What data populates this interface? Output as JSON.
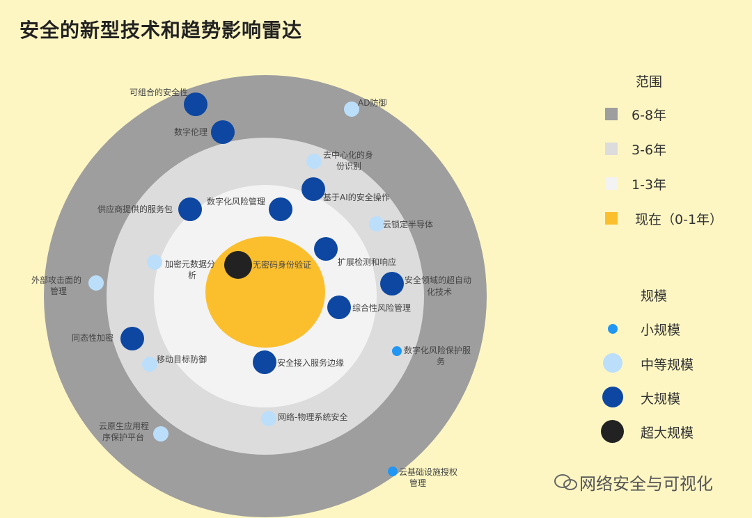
{
  "title": "安全的新型技术和趋势影响雷达",
  "colors": {
    "background": "#fdf6c3",
    "ring_6_8": "#9e9e9e",
    "ring_3_6": "#dcdcdc",
    "ring_1_3": "#f3f3f3",
    "core_now": "#fbbf2e",
    "small": "#2196f3",
    "medium": "#bbdefb",
    "large": "#0d47a1",
    "xlarge": "#222222"
  },
  "legend_range": {
    "title": "范围",
    "items": [
      {
        "label": "6-8年",
        "color": "#9e9e9e"
      },
      {
        "label": "3-6年",
        "color": "#dcdcdc"
      },
      {
        "label": "1-3年",
        "color": "#f3f3f3"
      },
      {
        "label": "现在（0-1年）",
        "color": "#fbbf2e"
      }
    ]
  },
  "legend_scale": {
    "title": "规模",
    "items": [
      {
        "label": "小规模",
        "size": "small"
      },
      {
        "label": "中等规模",
        "size": "medium"
      },
      {
        "label": "大规模",
        "size": "large"
      },
      {
        "label": "超大规模",
        "size": "xlarge"
      }
    ]
  },
  "technologies": [
    {
      "name": "可组合的安全性",
      "ring": "6-8年",
      "scale": "large"
    },
    {
      "name": "AD防御",
      "ring": "6-8年",
      "scale": "medium"
    },
    {
      "name": "数字伦理",
      "ring": "6-8年",
      "scale": "large"
    },
    {
      "name": "去中心化的身份识别",
      "ring": "3-6年",
      "scale": "medium"
    },
    {
      "name": "基于AI的安全操作",
      "ring": "3-6年",
      "scale": "large"
    },
    {
      "name": "数字化风险管理",
      "ring": "1-3年",
      "scale": "large"
    },
    {
      "name": "供应商提供的服务包",
      "ring": "3-6年",
      "scale": "large"
    },
    {
      "name": "云锁定半导体",
      "ring": "3-6年",
      "scale": "medium"
    },
    {
      "name": "扩展检测和响应",
      "ring": "1-3年",
      "scale": "large"
    },
    {
      "name": "加密元数据分析",
      "ring": "1-3年",
      "scale": "medium"
    },
    {
      "name": "无密码身份验证",
      "ring": "现在（0-1年）",
      "scale": "xlarge"
    },
    {
      "name": "外部攻击面的管理",
      "ring": "6-8年",
      "scale": "medium"
    },
    {
      "name": "安全领域的超自动化技术",
      "ring": "3-6年",
      "scale": "large"
    },
    {
      "name": "综合性风险管理",
      "ring": "1-3年",
      "scale": "large"
    },
    {
      "name": "同态性加密",
      "ring": "3-6年",
      "scale": "large"
    },
    {
      "name": "数字化风险保护服务",
      "ring": "6-8年",
      "scale": "small"
    },
    {
      "name": "移动目标防御",
      "ring": "3-6年",
      "scale": "medium"
    },
    {
      "name": "安全接入服务边缘",
      "ring": "1-3年",
      "scale": "large"
    },
    {
      "name": "网络-物理系统安全",
      "ring": "3-6年",
      "scale": "medium"
    },
    {
      "name": "云原生应用程序保护平台",
      "ring": "6-8年",
      "scale": "medium"
    },
    {
      "name": "云基础设施授权管理",
      "ring": "6-8年",
      "scale": "small"
    }
  ],
  "watermark": "网络安全与可视化"
}
